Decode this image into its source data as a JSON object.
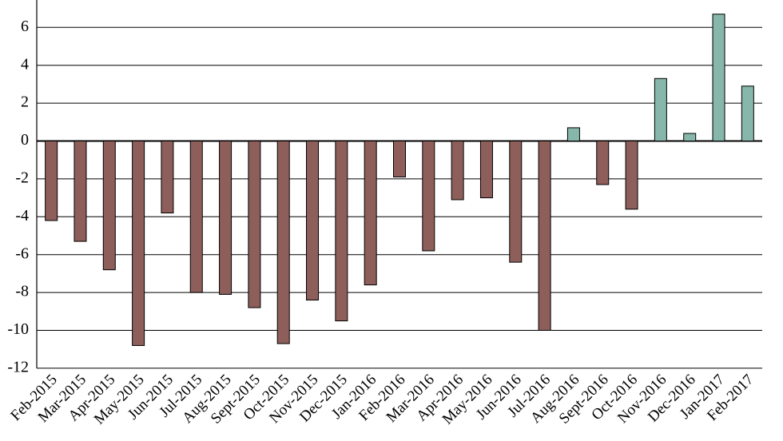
{
  "chart_data": {
    "type": "bar",
    "title": "",
    "xlabel": "",
    "ylabel": "",
    "ylim": [
      -12,
      7
    ],
    "yticks": [
      6,
      4,
      2,
      0,
      -2,
      -4,
      -6,
      -8,
      -10,
      -12
    ],
    "grid": true,
    "legend": "none",
    "colors": {
      "negative": "#8d5e5a",
      "positive": "#87b6aa",
      "grid": "#000000"
    },
    "categories": [
      "Feb-2015",
      "Mar-2015",
      "Apr-2015",
      "May-2015",
      "Jun-2015",
      "Jul-2015",
      "Aug-2015",
      "Sept-2015",
      "Oct-2015",
      "Nov-2015",
      "Dec-2015",
      "Jan-2016",
      "Feb-2016",
      "Mar-2016",
      "Apr-2016",
      "May-2016",
      "Jun-2016",
      "Jul-2016",
      "Aug-2016",
      "Sept-2016",
      "Oct-2016",
      "Nov-2016",
      "Dec-2016",
      "Jan-2017",
      "Feb-2017"
    ],
    "values": [
      -4.2,
      -5.3,
      -6.8,
      -10.8,
      -3.8,
      -8.0,
      -8.1,
      -8.8,
      -10.7,
      -8.4,
      -9.5,
      -7.6,
      -1.9,
      -5.8,
      -3.1,
      -3.0,
      -6.4,
      -10.0,
      0.7,
      -2.3,
      -3.6,
      3.3,
      0.4,
      6.7,
      2.9
    ]
  }
}
